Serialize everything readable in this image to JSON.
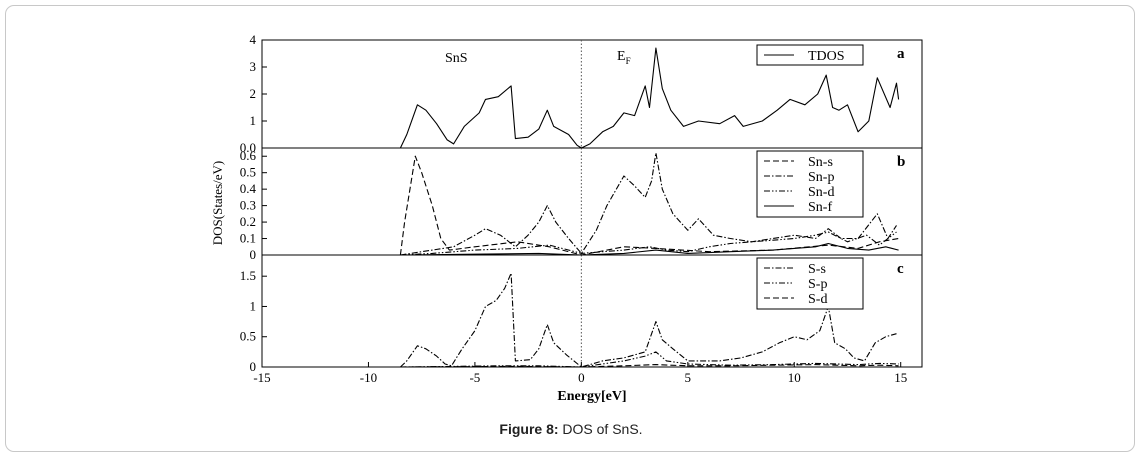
{
  "caption": {
    "label": "Figure 8:",
    "text": " DOS of SnS."
  },
  "chart_data": {
    "type": "line",
    "title": "",
    "xlabel": "Energy[eV]",
    "ylabel": "DOS(States/eV)",
    "xlim": [
      -15,
      16
    ],
    "x_ticks": [
      "-15",
      "-10",
      "-5",
      "0",
      "5",
      "10",
      "15"
    ],
    "fermi_level": 0,
    "panels": [
      {
        "id": "a",
        "label": "a",
        "annotations": {
          "compound": "SnS",
          "fermi_main": "E",
          "fermi_sub": "F"
        },
        "ylim": [
          0,
          4
        ],
        "y_ticks": [
          "0.0",
          "1",
          "2",
          "3",
          "4"
        ],
        "legend_position": "top-right",
        "series": [
          {
            "name": "TDOS",
            "style": "solid",
            "color": "#000000",
            "points": [
              [
                -8.5,
                0
              ],
              [
                -8.2,
                0.5
              ],
              [
                -7.7,
                1.6
              ],
              [
                -7.3,
                1.4
              ],
              [
                -6.8,
                0.9
              ],
              [
                -6.3,
                0.3
              ],
              [
                -6,
                0.15
              ],
              [
                -5.5,
                0.8
              ],
              [
                -4.8,
                1.3
              ],
              [
                -4.5,
                1.8
              ],
              [
                -3.9,
                1.9
              ],
              [
                -3.3,
                2.3
              ],
              [
                -3.1,
                0.35
              ],
              [
                -2.5,
                0.4
              ],
              [
                -2,
                0.7
              ],
              [
                -1.6,
                1.4
              ],
              [
                -1.3,
                0.8
              ],
              [
                -0.6,
                0.5
              ],
              [
                -0.2,
                0.1
              ],
              [
                0,
                0
              ],
              [
                0.4,
                0.15
              ],
              [
                1,
                0.6
              ],
              [
                1.5,
                0.8
              ],
              [
                2,
                1.3
              ],
              [
                2.5,
                1.2
              ],
              [
                3.0,
                2.3
              ],
              [
                3.2,
                1.5
              ],
              [
                3.5,
                3.7
              ],
              [
                3.8,
                2.2
              ],
              [
                4.2,
                1.4
              ],
              [
                4.8,
                0.8
              ],
              [
                5.5,
                1.0
              ],
              [
                6.5,
                0.9
              ],
              [
                7.2,
                1.2
              ],
              [
                7.6,
                0.8
              ],
              [
                8.5,
                1.0
              ],
              [
                9.2,
                1.4
              ],
              [
                9.8,
                1.8
              ],
              [
                10.5,
                1.6
              ],
              [
                11.1,
                2.0
              ],
              [
                11.5,
                2.7
              ],
              [
                11.8,
                1.5
              ],
              [
                12.1,
                1.4
              ],
              [
                12.5,
                1.6
              ],
              [
                13.0,
                0.6
              ],
              [
                13.5,
                1.0
              ],
              [
                13.9,
                2.6
              ],
              [
                14.5,
                1.5
              ],
              [
                14.8,
                2.4
              ],
              [
                14.9,
                1.8
              ]
            ]
          }
        ]
      },
      {
        "id": "b",
        "label": "b",
        "ylim": [
          0,
          0.65
        ],
        "y_ticks": [
          "0",
          "0.1",
          "0.2",
          "0.3",
          "0.4",
          "0.5",
          "0.6"
        ],
        "legend_position": "top-right",
        "series": [
          {
            "name": "Sn-s",
            "style": "dashed",
            "color": "#000000",
            "points": [
              [
                -8.5,
                0
              ],
              [
                -8.3,
                0.2
              ],
              [
                -7.8,
                0.6
              ],
              [
                -7.5,
                0.5
              ],
              [
                -7,
                0.3
              ],
              [
                -6.6,
                0.1
              ],
              [
                -6.2,
                0.03
              ],
              [
                -5,
                0.05
              ],
              [
                -3,
                0.08
              ],
              [
                -1.5,
                0.05
              ],
              [
                0,
                0
              ],
              [
                2,
                0.05
              ],
              [
                3.5,
                0.04
              ],
              [
                6,
                0.02
              ],
              [
                9,
                0.03
              ],
              [
                11.6,
                0.06
              ],
              [
                13,
                0.04
              ],
              [
                14,
                0.08
              ],
              [
                14.9,
                0.1
              ]
            ]
          },
          {
            "name": "Sn-p",
            "style": "dashdot",
            "color": "#000000",
            "points": [
              [
                -8.5,
                0
              ],
              [
                -7.5,
                0.02
              ],
              [
                -6,
                0.05
              ],
              [
                -5,
                0.12
              ],
              [
                -4.5,
                0.16
              ],
              [
                -3.8,
                0.12
              ],
              [
                -3.1,
                0.05
              ],
              [
                -2.5,
                0.12
              ],
              [
                -2,
                0.2
              ],
              [
                -1.6,
                0.3
              ],
              [
                -1.2,
                0.2
              ],
              [
                -0.6,
                0.1
              ],
              [
                0,
                0.01
              ],
              [
                0.7,
                0.15
              ],
              [
                1.2,
                0.3
              ],
              [
                2,
                0.48
              ],
              [
                2.5,
                0.42
              ],
              [
                3,
                0.35
              ],
              [
                3.3,
                0.45
              ],
              [
                3.5,
                0.62
              ],
              [
                3.8,
                0.4
              ],
              [
                4.3,
                0.25
              ],
              [
                5,
                0.15
              ],
              [
                5.5,
                0.22
              ],
              [
                6.2,
                0.12
              ],
              [
                7,
                0.1
              ],
              [
                8,
                0.08
              ],
              [
                9,
                0.1
              ],
              [
                10,
                0.12
              ],
              [
                11,
                0.1
              ],
              [
                11.6,
                0.16
              ],
              [
                12.2,
                0.1
              ],
              [
                13,
                0.1
              ],
              [
                13.9,
                0.25
              ],
              [
                14.4,
                0.1
              ],
              [
                14.8,
                0.18
              ]
            ]
          },
          {
            "name": "Sn-d",
            "style": "dashdotdot",
            "color": "#000000",
            "points": [
              [
                -8.5,
                0
              ],
              [
                -7,
                0.01
              ],
              [
                -5,
                0.03
              ],
              [
                -3,
                0.04
              ],
              [
                -1.5,
                0.06
              ],
              [
                0,
                0.01
              ],
              [
                1,
                0.02
              ],
              [
                2,
                0.03
              ],
              [
                3.2,
                0.05
              ],
              [
                4,
                0.03
              ],
              [
                5,
                0.02
              ],
              [
                6,
                0.05
              ],
              [
                7,
                0.07
              ],
              [
                8,
                0.08
              ],
              [
                9,
                0.09
              ],
              [
                10,
                0.1
              ],
              [
                11,
                0.12
              ],
              [
                11.6,
                0.14
              ],
              [
                12.5,
                0.08
              ],
              [
                13.4,
                0.12
              ],
              [
                14,
                0.06
              ],
              [
                14.8,
                0.14
              ]
            ]
          },
          {
            "name": "Sn-f",
            "style": "solid",
            "color": "#000000",
            "points": [
              [
                -8.5,
                0
              ],
              [
                -5,
                0.005
              ],
              [
                -2,
                0.01
              ],
              [
                0,
                0
              ],
              [
                2,
                0.01
              ],
              [
                3.5,
                0.03
              ],
              [
                5,
                0.01
              ],
              [
                7,
                0.02
              ],
              [
                9,
                0.03
              ],
              [
                10,
                0.04
              ],
              [
                11,
                0.05
              ],
              [
                11.6,
                0.07
              ],
              [
                12.5,
                0.04
              ],
              [
                13.5,
                0.03
              ],
              [
                14.3,
                0.05
              ],
              [
                14.9,
                0.03
              ]
            ]
          }
        ]
      },
      {
        "id": "c",
        "label": "c",
        "ylim": [
          0,
          1.85
        ],
        "y_ticks": [
          "0",
          "0.5",
          "1",
          "1.5"
        ],
        "legend_position": "top-right",
        "series": [
          {
            "name": "S-s",
            "style": "dashdot",
            "color": "#000000",
            "points": [
              [
                -8.5,
                0
              ],
              [
                -8.2,
                0.1
              ],
              [
                -7.7,
                0.35
              ],
              [
                -7.3,
                0.3
              ],
              [
                -6.8,
                0.18
              ],
              [
                -6.4,
                0.05
              ],
              [
                -6.1,
                0.02
              ],
              [
                -5.6,
                0.3
              ],
              [
                -5,
                0.6
              ],
              [
                -4.5,
                1.0
              ],
              [
                -4,
                1.1
              ],
              [
                -3.6,
                1.3
              ],
              [
                -3.3,
                1.55
              ],
              [
                -3.1,
                0.1
              ],
              [
                -2.4,
                0.12
              ],
              [
                -2,
                0.3
              ],
              [
                -1.6,
                0.7
              ],
              [
                -1.3,
                0.4
              ],
              [
                -0.7,
                0.2
              ],
              [
                0,
                0
              ],
              [
                0.5,
                0.05
              ],
              [
                1,
                0.1
              ],
              [
                2,
                0.15
              ],
              [
                3,
                0.25
              ],
              [
                3.5,
                0.75
              ],
              [
                3.8,
                0.45
              ],
              [
                4.3,
                0.3
              ],
              [
                5,
                0.1
              ],
              [
                6.5,
                0.1
              ],
              [
                7.5,
                0.15
              ],
              [
                8.5,
                0.25
              ],
              [
                9.3,
                0.4
              ],
              [
                10,
                0.5
              ],
              [
                10.6,
                0.45
              ],
              [
                11.2,
                0.6
              ],
              [
                11.6,
                1.0
              ],
              [
                11.9,
                0.4
              ],
              [
                12.4,
                0.3
              ],
              [
                12.8,
                0.15
              ],
              [
                13.3,
                0.1
              ],
              [
                13.8,
                0.4
              ],
              [
                14.3,
                0.5
              ],
              [
                14.8,
                0.55
              ]
            ]
          },
          {
            "name": "S-p",
            "style": "dashdotdot",
            "color": "#000000",
            "points": [
              [
                -8.5,
                0
              ],
              [
                -6,
                0.01
              ],
              [
                -4,
                0.02
              ],
              [
                -2,
                0.02
              ],
              [
                0,
                0
              ],
              [
                2,
                0.1
              ],
              [
                3,
                0.18
              ],
              [
                3.5,
                0.25
              ],
              [
                4,
                0.1
              ],
              [
                5,
                0.05
              ],
              [
                7,
                0.03
              ],
              [
                9,
                0.04
              ],
              [
                11,
                0.06
              ],
              [
                12,
                0.05
              ],
              [
                13,
                0.04
              ],
              [
                14,
                0.06
              ],
              [
                14.9,
                0.05
              ]
            ]
          },
          {
            "name": "S-d",
            "style": "dashed",
            "color": "#000000",
            "points": [
              [
                -8.5,
                0
              ],
              [
                -6,
                0.005
              ],
              [
                -3,
                0.01
              ],
              [
                0,
                0
              ],
              [
                2,
                0.02
              ],
              [
                3.5,
                0.04
              ],
              [
                5,
                0.02
              ],
              [
                7,
                0.02
              ],
              [
                9,
                0.03
              ],
              [
                11,
                0.04
              ],
              [
                12,
                0.03
              ],
              [
                13,
                0.02
              ],
              [
                14,
                0.03
              ],
              [
                14.9,
                0.02
              ]
            ]
          }
        ]
      }
    ]
  }
}
